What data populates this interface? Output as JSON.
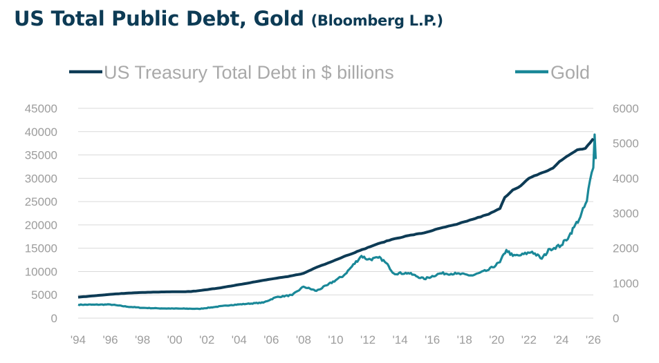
{
  "title": "US Total Public Debt, Gold",
  "subtitle": "(Bloomberg L.P.)",
  "colors": {
    "debt": "#0d3b55",
    "gold": "#1a8898",
    "title": "#0d3b55",
    "grid": "#d9d9d9",
    "tick": "#9c9c9c"
  },
  "chart_data": {
    "type": "line",
    "title": "US Total Public Debt, Gold (Bloomberg L.P.)",
    "legend_position": "top",
    "grid": true,
    "x_range": [
      1994,
      2026
    ],
    "x_ticks": [
      1994,
      1996,
      1998,
      2000,
      2002,
      2004,
      2006,
      2008,
      2010,
      2012,
      2014,
      2016,
      2018,
      2020,
      2022,
      2024,
      2026
    ],
    "x_tick_labels": [
      "'94",
      "'96",
      "'98",
      "'00",
      "'02",
      "'04",
      "'06",
      "'08",
      "'10",
      "'12",
      "'14",
      "'16",
      "'18",
      "'20",
      "'22",
      "'24",
      "'26"
    ],
    "y_left": {
      "range": [
        0,
        45000
      ],
      "ticks": [
        "0",
        "5000",
        "10000",
        "15000",
        "20000",
        "25000",
        "30000",
        "35000",
        "40000",
        "45000"
      ]
    },
    "y_right": {
      "range": [
        0,
        6000
      ],
      "ticks": [
        "0",
        "1000",
        "2000",
        "3000",
        "4000",
        "5000",
        "6000"
      ]
    },
    "series": [
      {
        "name": "US Treasury Total Debt in $ billions",
        "axis": "left",
        "points": [
          [
            1994.0,
            4500
          ],
          [
            1995.0,
            4800
          ],
          [
            1996.0,
            5100
          ],
          [
            1997.0,
            5350
          ],
          [
            1998.0,
            5500
          ],
          [
            1999.0,
            5600
          ],
          [
            2000.0,
            5650
          ],
          [
            2001.0,
            5700
          ],
          [
            2002.0,
            6100
          ],
          [
            2003.0,
            6600
          ],
          [
            2004.0,
            7200
          ],
          [
            2005.0,
            7800
          ],
          [
            2006.0,
            8400
          ],
          [
            2007.0,
            8900
          ],
          [
            2008.0,
            9600
          ],
          [
            2008.8,
            10900
          ],
          [
            2009.5,
            11800
          ],
          [
            2010.5,
            13200
          ],
          [
            2011.5,
            14500
          ],
          [
            2012.5,
            15800
          ],
          [
            2013.5,
            16900
          ],
          [
            2014.5,
            17700
          ],
          [
            2015.5,
            18300
          ],
          [
            2016.5,
            19300
          ],
          [
            2017.5,
            20100
          ],
          [
            2018.5,
            21200
          ],
          [
            2019.5,
            22300
          ],
          [
            2020.2,
            23500
          ],
          [
            2020.5,
            25900
          ],
          [
            2021.0,
            27500
          ],
          [
            2021.5,
            28400
          ],
          [
            2022.0,
            30000
          ],
          [
            2022.5,
            30700
          ],
          [
            2023.0,
            31400
          ],
          [
            2023.5,
            32200
          ],
          [
            2023.9,
            33600
          ],
          [
            2024.5,
            35000
          ],
          [
            2025.0,
            36100
          ],
          [
            2025.5,
            36400
          ],
          [
            2025.8,
            37600
          ],
          [
            2026.0,
            38500
          ]
        ]
      },
      {
        "name": "Gold",
        "axis": "right",
        "points": [
          [
            1994.0,
            385
          ],
          [
            1995.0,
            385
          ],
          [
            1996.0,
            390
          ],
          [
            1997.0,
            330
          ],
          [
            1998.0,
            295
          ],
          [
            1999.0,
            280
          ],
          [
            1999.9,
            275
          ],
          [
            2001.0,
            270
          ],
          [
            2001.5,
            265
          ],
          [
            2002.5,
            320
          ],
          [
            2003.5,
            375
          ],
          [
            2004.5,
            410
          ],
          [
            2005.5,
            445
          ],
          [
            2006.3,
            600
          ],
          [
            2007.3,
            660
          ],
          [
            2008.0,
            900
          ],
          [
            2008.8,
            780
          ],
          [
            2009.5,
            950
          ],
          [
            2010.5,
            1220
          ],
          [
            2011.6,
            1780
          ],
          [
            2012.0,
            1680
          ],
          [
            2012.8,
            1720
          ],
          [
            2013.3,
            1480
          ],
          [
            2013.6,
            1280
          ],
          [
            2014.5,
            1290
          ],
          [
            2015.5,
            1120
          ],
          [
            2016.5,
            1280
          ],
          [
            2017.5,
            1270
          ],
          [
            2018.5,
            1220
          ],
          [
            2019.5,
            1380
          ],
          [
            2020.2,
            1600
          ],
          [
            2020.6,
            1950
          ],
          [
            2021.0,
            1780
          ],
          [
            2021.5,
            1800
          ],
          [
            2022.2,
            1900
          ],
          [
            2022.8,
            1700
          ],
          [
            2023.3,
            1980
          ],
          [
            2024.0,
            2080
          ],
          [
            2024.5,
            2350
          ],
          [
            2024.8,
            2600
          ],
          [
            2025.2,
            2900
          ],
          [
            2025.6,
            3350
          ],
          [
            2025.8,
            3950
          ],
          [
            2026.0,
            4300
          ],
          [
            2026.08,
            5250
          ],
          [
            2026.15,
            4550
          ]
        ]
      }
    ]
  }
}
